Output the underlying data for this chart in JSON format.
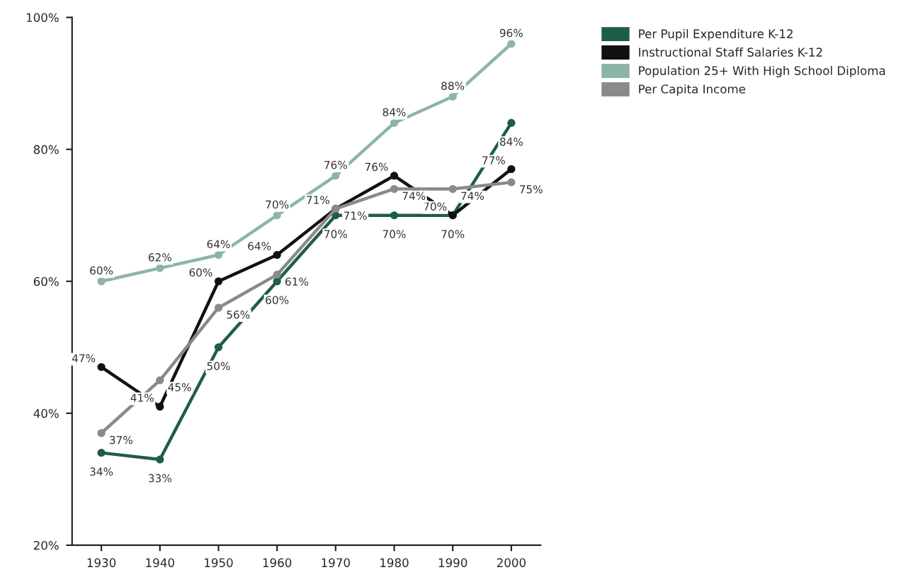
{
  "chart_data": {
    "type": "line",
    "x": [
      1930,
      1940,
      1950,
      1960,
      1970,
      1980,
      1990,
      2000
    ],
    "xlim": [
      1925,
      2005
    ],
    "xticks": [
      1930,
      1940,
      1950,
      1960,
      1970,
      1980,
      1990,
      2000
    ],
    "ylim": [
      20,
      100
    ],
    "yticks": [
      {
        "value": 20,
        "label": "20%"
      },
      {
        "value": 40,
        "label": "40%"
      },
      {
        "value": 60,
        "label": "60%"
      },
      {
        "value": 80,
        "label": "80%"
      },
      {
        "value": 100,
        "label": "100%"
      }
    ],
    "series": [
      {
        "name": "Per Pupil Expenditure K-12",
        "color": "#1e5e46",
        "values": [
          34,
          33,
          50,
          60,
          70,
          70,
          70,
          84
        ],
        "value_labels": [
          "34%",
          "33%",
          "50%",
          "60%",
          "70%",
          "70%",
          "70%",
          "84%"
        ]
      },
      {
        "name": "Instructional Staff Salaries K-12",
        "color": "#111111",
        "values": [
          47,
          41,
          60,
          64,
          71,
          76,
          70,
          77
        ],
        "value_labels": [
          "47%",
          "41%",
          "60%",
          "64%",
          "71%",
          "76%",
          "70%",
          "77%"
        ]
      },
      {
        "name": "Population 25+ With High School Diploma",
        "color": "#8db5a5",
        "values": [
          60,
          62,
          64,
          70,
          76,
          84,
          88,
          96
        ],
        "value_labels": [
          "60%",
          "62%",
          "64%",
          "70%",
          "76%",
          "84%",
          "88%",
          "96%"
        ]
      },
      {
        "name": "Per Capita Income",
        "color": "#8a8a8a",
        "values": [
          37,
          45,
          56,
          61,
          71,
          74,
          74,
          75
        ],
        "value_labels": [
          "37%",
          "45%",
          "56%",
          "61%",
          "71%",
          "74%",
          "74%",
          "75%"
        ]
      }
    ],
    "marker": "circle",
    "line_style": "solid",
    "grid": false,
    "legend": "top right"
  }
}
